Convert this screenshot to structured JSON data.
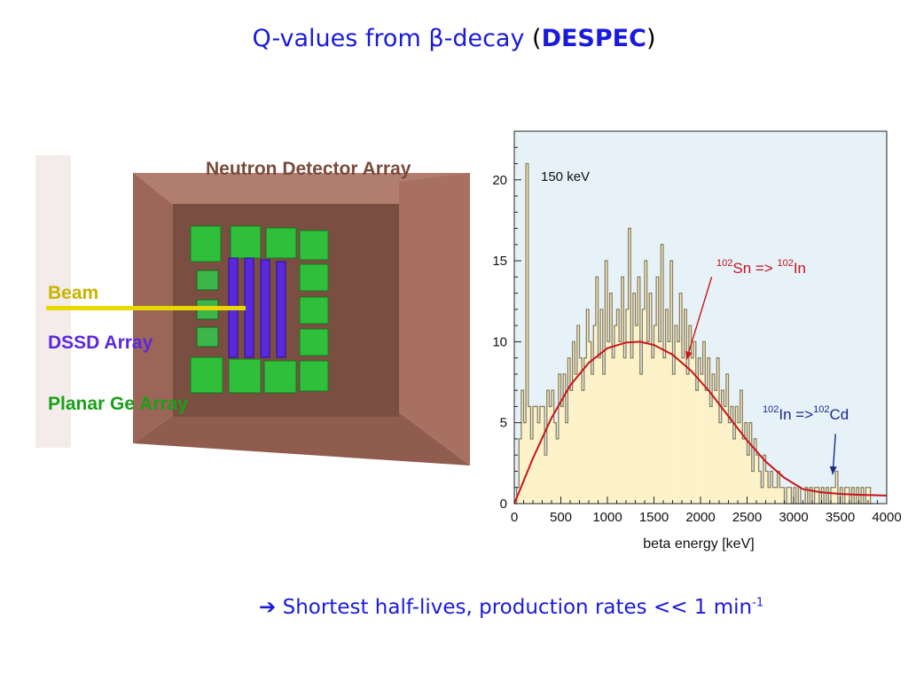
{
  "slide": {
    "title_main": "Q-values from ",
    "title_beta": "β",
    "title_tail": "-decay ",
    "title_open": "(",
    "title_despec": "DESPEC",
    "title_close": ")",
    "footer_arrow": "➔",
    "footer_text": "Shortest half-lives, production rates << 1 min",
    "footer_sup": "-1"
  },
  "detector": {
    "label_neutron": "Neutron Detector Array",
    "label_beam": "Beam",
    "label_dssd": "DSSD Array",
    "label_planar": "Planar Ge Array",
    "colors": {
      "neutron_label": "#7a4a3a",
      "beam": "#d8c800",
      "dssd": "#5a28e0",
      "planar": "#18a018",
      "wall": "#b07d6f"
    }
  },
  "annotations": {
    "peak_label": "150 keV",
    "sn_sup1": "102",
    "sn_text1": "Sn => ",
    "sn_sup2": "102",
    "sn_text2": "In",
    "in_sup1": "102",
    "in_text1": "In =>",
    "in_sup2": "102",
    "in_text2": "Cd"
  },
  "chart_data": {
    "type": "bar",
    "xlabel": "beta energy [keV]",
    "ylabel": "",
    "xlim": [
      0,
      4000
    ],
    "ylim": [
      0,
      23
    ],
    "xticks": [
      0,
      500,
      1000,
      1500,
      2000,
      2500,
      3000,
      3500,
      4000
    ],
    "yticks": [
      0,
      5,
      10,
      15,
      20
    ],
    "bin_width": 25,
    "histogram": [
      0,
      1,
      4,
      7,
      5,
      21,
      6,
      4,
      6,
      6,
      5,
      6,
      6,
      3,
      7,
      6,
      7,
      5,
      4,
      8,
      6,
      8,
      5,
      9,
      7,
      10,
      8,
      11,
      9,
      7,
      9,
      12,
      10,
      8,
      11,
      14,
      9,
      12,
      8,
      15,
      10,
      13,
      9,
      11,
      12,
      10,
      14,
      9,
      12,
      17,
      9,
      13,
      11,
      14,
      8,
      12,
      15,
      10,
      13,
      9,
      11,
      14,
      10,
      16,
      9,
      12,
      10,
      15,
      8,
      11,
      10,
      13,
      9,
      12,
      8,
      11,
      9,
      10,
      7,
      9,
      8,
      10,
      7,
      9,
      6,
      8,
      7,
      9,
      5,
      7,
      6,
      8,
      5,
      6,
      4,
      6,
      5,
      7,
      4,
      5,
      3,
      5,
      2,
      4,
      3,
      2,
      1,
      3,
      2,
      1,
      2,
      1,
      1,
      2,
      1,
      1,
      0,
      1,
      1,
      0,
      1,
      0,
      1,
      0,
      0,
      1,
      0,
      1,
      0,
      1,
      1,
      0,
      1,
      0,
      1,
      0,
      1,
      1,
      2,
      0,
      1,
      0,
      1,
      1,
      0,
      1,
      0,
      1,
      0,
      1,
      0,
      1,
      1,
      0
    ],
    "fit_curve": {
      "name": "",
      "color": "#c8141e",
      "x": [
        0,
        200,
        400,
        600,
        800,
        1000,
        1200,
        1350,
        1500,
        1700,
        1900,
        2100,
        2300,
        2500,
        2700,
        2900,
        3100,
        3300,
        3500,
        3700,
        4000
      ],
      "y": [
        0,
        2.8,
        5.3,
        7.3,
        8.7,
        9.6,
        9.95,
        10.0,
        9.8,
        9.2,
        8.2,
        6.9,
        5.4,
        3.9,
        2.6,
        1.6,
        0.9,
        0.7,
        0.6,
        0.55,
        0.5
      ]
    },
    "arrows": [
      {
        "from": [
          2120,
          14
        ],
        "to": [
          1850,
          8.9
        ],
        "color": "#c8141e"
      },
      {
        "from": [
          3450,
          4.3
        ],
        "to": [
          3420,
          1.8
        ],
        "color": "#1a2a8a"
      }
    ],
    "colors": {
      "fill": "#fdf2c8",
      "stroke": "#8a8060",
      "plot_bg": "#e6f1f8"
    }
  }
}
